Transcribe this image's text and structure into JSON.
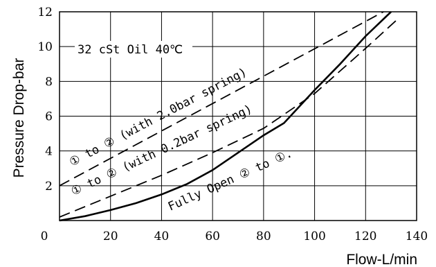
{
  "chart_data": {
    "type": "line",
    "title": "",
    "xlabel": "Flow-L/min",
    "ylabel": "Pressure Drop-bar",
    "xlim": [
      0,
      140
    ],
    "ylim": [
      0,
      12
    ],
    "xticks": [
      0,
      20,
      40,
      60,
      80,
      100,
      120,
      140
    ],
    "yticks": [
      0,
      2,
      4,
      6,
      8,
      10,
      12
    ],
    "grid": true,
    "annotation": "32 cSt Oil 40℃",
    "series": [
      {
        "name": "① to ② (with 2.0bar spring)",
        "style": "dashed",
        "x": [
          0,
          127
        ],
        "y": [
          2.0,
          12.0
        ]
      },
      {
        "name": "① to ② (with 0.2bar spring)",
        "style": "dashed",
        "x": [
          0,
          20,
          40,
          60,
          80,
          100,
          120,
          132
        ],
        "y": [
          0.2,
          1.4,
          2.6,
          3.9,
          5.3,
          7.3,
          9.9,
          11.5
        ]
      },
      {
        "name": "Fully Open ② to ①.",
        "style": "solid",
        "x": [
          0,
          10,
          20,
          30,
          40,
          50,
          60,
          70,
          80,
          88,
          100,
          110,
          120,
          130
        ],
        "y": [
          0,
          0.25,
          0.6,
          1.0,
          1.5,
          2.1,
          2.9,
          3.9,
          4.9,
          5.6,
          7.5,
          9.0,
          10.6,
          12.0
        ]
      }
    ]
  }
}
